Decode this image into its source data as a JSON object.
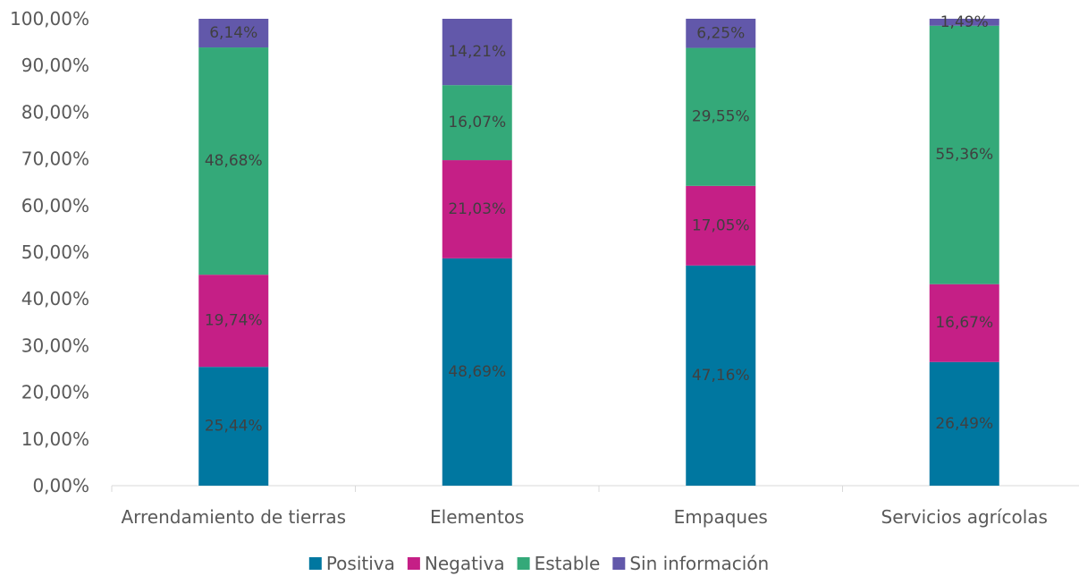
{
  "chart_data": {
    "type": "bar",
    "stacked": true,
    "categories": [
      "Arrendamiento de tierras",
      "Elementos",
      "Empaques",
      "Servicios agrícolas"
    ],
    "series": [
      {
        "name": "Positiva",
        "color": "#0077A0",
        "values": [
          25.44,
          48.69,
          47.16,
          26.49
        ],
        "labels": [
          "25,44%",
          "48,69%",
          "47,16%",
          "26,49%"
        ]
      },
      {
        "name": "Negativa",
        "color": "#C51F86",
        "values": [
          19.74,
          21.03,
          17.05,
          16.67
        ],
        "labels": [
          "19,74%",
          "21,03%",
          "17,05%",
          "16,67%"
        ]
      },
      {
        "name": "Estable",
        "color": "#34A979",
        "values": [
          48.68,
          16.07,
          29.55,
          55.36
        ],
        "labels": [
          "48,68%",
          "16,07%",
          "29,55%",
          "55,36%"
        ]
      },
      {
        "name": "Sin información",
        "color": "#6258AA",
        "values": [
          6.14,
          14.21,
          6.25,
          1.49
        ],
        "labels": [
          "6,14%",
          "14,21%",
          "6,25%",
          "1,49%"
        ]
      }
    ],
    "y_ticks": [
      "0,00%",
      "10,00%",
      "20,00%",
      "30,00%",
      "40,00%",
      "50,00%",
      "60,00%",
      "70,00%",
      "80,00%",
      "90,00%",
      "100,00%"
    ],
    "ylim": [
      0,
      100
    ],
    "grid": false,
    "legend": "bottom"
  }
}
